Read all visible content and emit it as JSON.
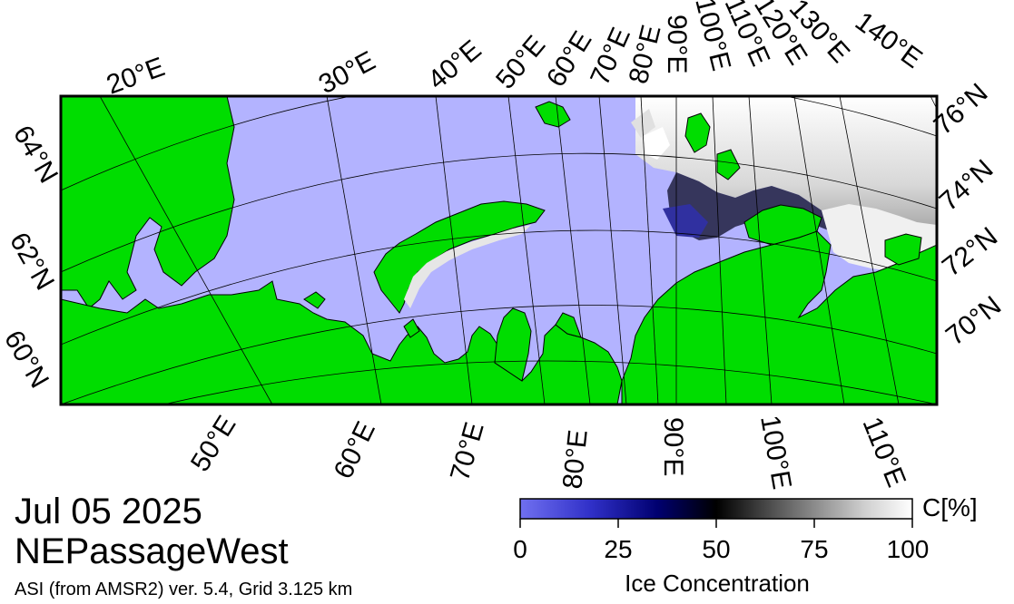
{
  "map": {
    "title_date": "Jul 05 2025",
    "region": "NEPassageWest",
    "source_note": "ASI (from AMSR2) ver. 5.4,  Grid 3.125 km",
    "colors": {
      "land": "#00dd00",
      "open_water": "#b3b3ff",
      "graticule": "#000000",
      "ice_high": "#ffffff",
      "ice_mid": "#000000",
      "ice_low": "#0000aa",
      "missing": "#888888"
    },
    "longitude_labels_top": [
      "20°E",
      "30°E",
      "40°E",
      "50°E",
      "60°E",
      "70°E",
      "80°E",
      "90°E",
      "100°E",
      "110°E",
      "120°E",
      "130°E",
      "140°E"
    ],
    "longitude_labels_bottom": [
      "50°E",
      "60°E",
      "70°E",
      "80°E",
      "90°E",
      "100°E",
      "110°E"
    ],
    "latitude_labels_left": [
      "64°N",
      "62°N",
      "60°N"
    ],
    "latitude_labels_right": [
      "76°N",
      "74°N",
      "72°N",
      "70°N"
    ]
  },
  "colorbar": {
    "unit_label": "C[%]",
    "ticks": [
      "0",
      "25",
      "50",
      "75",
      "100"
    ],
    "title": "Ice Concentration",
    "gradient": [
      "#6a6af0",
      "#3030c0",
      "#000060",
      "#000000",
      "#606060",
      "#c0c0c0",
      "#ffffff"
    ]
  }
}
